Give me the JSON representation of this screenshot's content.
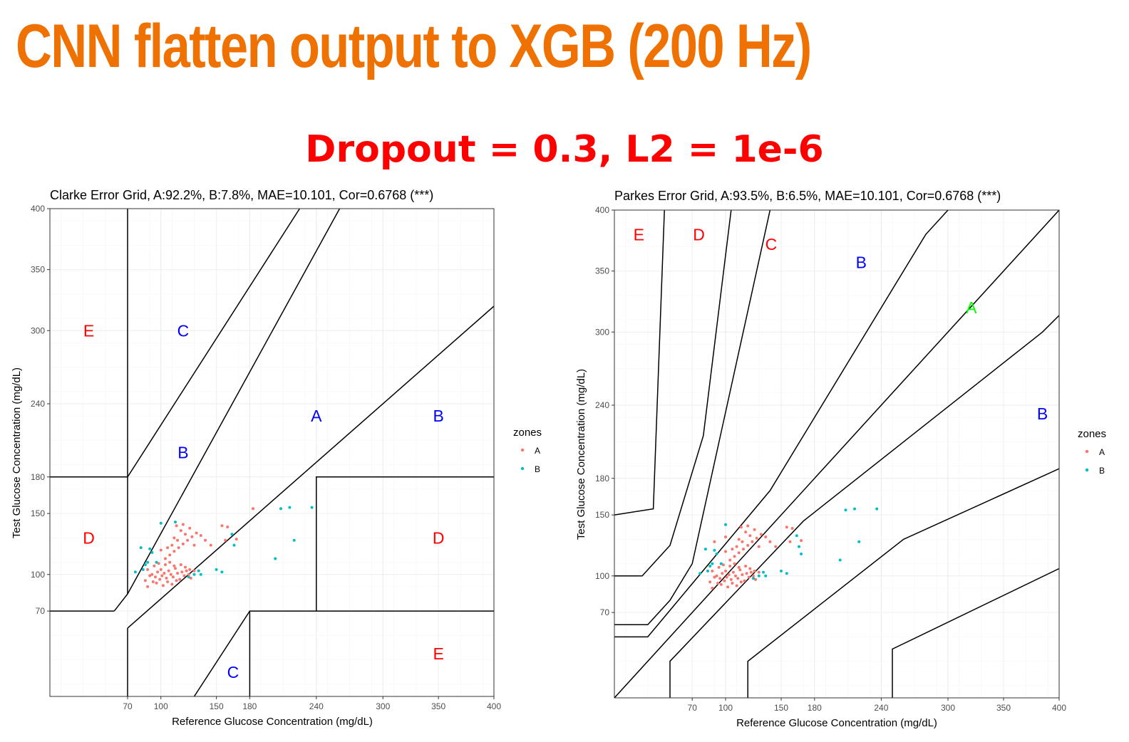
{
  "page": {
    "title": "CNN flatten output to XGB (200 Hz)",
    "subtitle": "Dropout = 0.3, L2 = 1e-6"
  },
  "colors": {
    "title": "#ee7102",
    "subtitle": "#ff0000",
    "zone_A": "#f8766d",
    "zone_B": "#00bfc4",
    "label_red": "#ff0000",
    "label_blue": "#0000ff",
    "label_green": "#00ff00"
  },
  "chart_data": [
    {
      "type": "scatter",
      "title": "Clarke Error Grid, A:92.2%, B:7.8%, MAE=10.101, Cor=0.6768 (***)",
      "xlabel": "Reference Glucose Concentration (mg/dL)",
      "ylabel": "Test Glucose Concentration (mg/dL)",
      "xlim": [
        0,
        400
      ],
      "ylim": [
        0,
        400
      ],
      "xticks": [
        70,
        100,
        150,
        180,
        240,
        300,
        350,
        400
      ],
      "yticks": [
        70,
        100,
        150,
        180,
        240,
        300,
        350,
        400
      ],
      "grid": true,
      "legend": {
        "title": "zones",
        "position": "right",
        "entries": [
          "A",
          "B"
        ]
      },
      "zone_lines": [
        [
          [
            70,
            400
          ],
          [
            70,
            84
          ]
        ],
        [
          [
            0,
            180
          ],
          [
            70,
            180
          ],
          [
            225,
            400
          ]
        ],
        [
          [
            58,
            70
          ],
          [
            70,
            84
          ],
          [
            261,
            400
          ]
        ],
        [
          [
            0,
            70
          ],
          [
            58,
            70
          ]
        ],
        [
          [
            70,
            56
          ],
          [
            70,
            0
          ]
        ],
        [
          [
            70,
            56
          ],
          [
            400,
            320
          ]
        ],
        [
          [
            240,
            70
          ],
          [
            240,
            180
          ],
          [
            400,
            180
          ]
        ],
        [
          [
            180,
            0
          ],
          [
            180,
            70
          ],
          [
            400,
            70
          ]
        ],
        [
          [
            130,
            0
          ],
          [
            180,
            70
          ]
        ]
      ],
      "zone_labels": [
        {
          "text": "E",
          "x": 35,
          "y": 300,
          "color": "red"
        },
        {
          "text": "C",
          "x": 120,
          "y": 300,
          "color": "blue"
        },
        {
          "text": "A",
          "x": 240,
          "y": 230,
          "color": "blue"
        },
        {
          "text": "B",
          "x": 350,
          "y": 230,
          "color": "blue"
        },
        {
          "text": "B",
          "x": 120,
          "y": 200,
          "color": "blue"
        },
        {
          "text": "D",
          "x": 35,
          "y": 130,
          "color": "red"
        },
        {
          "text": "D",
          "x": 350,
          "y": 130,
          "color": "red"
        },
        {
          "text": "E",
          "x": 350,
          "y": 35,
          "color": "red"
        },
        {
          "text": "C",
          "x": 165,
          "y": 20,
          "color": "blue"
        }
      ],
      "series": [
        {
          "name": "A",
          "points": [
            [
              92,
              100
            ],
            [
              95,
              98
            ],
            [
              97,
              102
            ],
            [
              99,
              96
            ],
            [
              100,
              104
            ],
            [
              101,
              99
            ],
            [
              103,
              101
            ],
            [
              105,
              97
            ],
            [
              107,
              103
            ],
            [
              109,
              100
            ],
            [
              111,
              98
            ],
            [
              113,
              105
            ],
            [
              115,
              101
            ],
            [
              117,
              96
            ],
            [
              119,
              102
            ],
            [
              121,
              99
            ],
            [
              123,
              103
            ],
            [
              125,
              100
            ],
            [
              127,
              97
            ],
            [
              86,
              95
            ],
            [
              88,
              104
            ],
            [
              90,
              99
            ],
            [
              94,
              107
            ],
            [
              96,
              93
            ],
            [
              98,
              109
            ],
            [
              102,
              91
            ],
            [
              104,
              108
            ],
            [
              106,
              94
            ],
            [
              108,
              110
            ],
            [
              110,
              92
            ],
            [
              112,
              107
            ],
            [
              114,
              95
            ],
            [
              118,
              108
            ],
            [
              122,
              106
            ],
            [
              126,
              104
            ],
            [
              130,
              103
            ],
            [
              88,
              90
            ],
            [
              93,
              94
            ],
            [
              104,
              113
            ],
            [
              108,
              116
            ],
            [
              112,
              119
            ],
            [
              116,
              122
            ],
            [
              120,
              125
            ],
            [
              124,
              128
            ],
            [
              128,
              131
            ],
            [
              132,
              134
            ],
            [
              110,
              124
            ],
            [
              115,
              128
            ],
            [
              118,
              136
            ],
            [
              122,
              133
            ],
            [
              126,
              138
            ],
            [
              114,
              140
            ],
            [
              120,
              141
            ],
            [
              136,
              132
            ],
            [
              140,
              128
            ],
            [
              145,
              124
            ],
            [
              100,
              120
            ],
            [
              106,
              122
            ],
            [
              112,
              130
            ],
            [
              130,
              124
            ],
            [
              155,
              140
            ],
            [
              160,
              139
            ],
            [
              158,
              128
            ],
            [
              168,
              129
            ],
            [
              183,
              154
            ]
          ]
        },
        {
          "name": "B",
          "points": [
            [
              77,
              102
            ],
            [
              82,
              122
            ],
            [
              84,
              104
            ],
            [
              86,
              108
            ],
            [
              88,
              110
            ],
            [
              90,
              121
            ],
            [
              92,
              118
            ],
            [
              96,
              110
            ],
            [
              100,
              142
            ],
            [
              113,
              143
            ],
            [
              125,
              98
            ],
            [
              130,
              100
            ],
            [
              134,
              103
            ],
            [
              136,
              100
            ],
            [
              150,
              104
            ],
            [
              155,
              102
            ],
            [
              164,
              133
            ],
            [
              166,
              124
            ],
            [
              203,
              113
            ],
            [
              208,
              154
            ],
            [
              216,
              155
            ],
            [
              220,
              128
            ],
            [
              236,
              155
            ]
          ]
        }
      ]
    },
    {
      "type": "scatter",
      "title": "Parkes Error Grid, A:93.5%, B:6.5%, MAE=10.101, Cor=0.6768 (***)",
      "xlabel": "Reference Glucose Concentration (mg/dL)",
      "ylabel": "Test Glucose Concentration (mg/dL)",
      "xlim": [
        0,
        400
      ],
      "ylim": [
        0,
        400
      ],
      "xticks": [
        70,
        100,
        150,
        180,
        240,
        300,
        350,
        400
      ],
      "yticks": [
        70,
        100,
        150,
        180,
        240,
        300,
        350,
        400
      ],
      "grid": true,
      "legend": {
        "title": "zones",
        "position": "right",
        "entries": [
          "A",
          "B"
        ]
      },
      "zone_lines": [
        [
          [
            0,
            150
          ],
          [
            35,
            155
          ],
          [
            45,
            400
          ]
        ],
        [
          [
            0,
            100
          ],
          [
            25,
            100
          ],
          [
            50,
            125
          ],
          [
            80,
            215
          ],
          [
            105,
            400
          ]
        ],
        [
          [
            0,
            60
          ],
          [
            30,
            60
          ],
          [
            50,
            80
          ],
          [
            70,
            110
          ],
          [
            140,
            400
          ]
        ],
        [
          [
            0,
            50
          ],
          [
            30,
            50
          ],
          [
            140,
            170
          ],
          [
            280,
            380
          ],
          [
            400,
            500
          ]
        ],
        [
          [
            0,
            0
          ],
          [
            400,
            400
          ]
        ],
        [
          [
            50,
            0
          ],
          [
            50,
            30
          ],
          [
            170,
            145
          ],
          [
            385,
            300
          ],
          [
            550,
            450
          ]
        ],
        [
          [
            120,
            0
          ],
          [
            120,
            30
          ],
          [
            260,
            130
          ],
          [
            550,
            250
          ]
        ],
        [
          [
            250,
            0
          ],
          [
            250,
            40
          ],
          [
            500,
            150
          ]
        ]
      ],
      "zone_labels": [
        {
          "text": "E",
          "x": 22,
          "y": 380,
          "color": "red"
        },
        {
          "text": "D",
          "x": 76,
          "y": 380,
          "color": "red"
        },
        {
          "text": "C",
          "x": 141,
          "y": 372,
          "color": "red"
        },
        {
          "text": "B",
          "x": 222,
          "y": 357,
          "color": "blue"
        },
        {
          "text": "A",
          "x": 321,
          "y": 320,
          "color": "green"
        },
        {
          "text": "B",
          "x": 385,
          "y": 233,
          "color": "blue"
        }
      ],
      "series": [
        {
          "name": "A",
          "points": [
            [
              92,
              100
            ],
            [
              95,
              98
            ],
            [
              97,
              102
            ],
            [
              99,
              96
            ],
            [
              100,
              104
            ],
            [
              101,
              99
            ],
            [
              103,
              101
            ],
            [
              105,
              97
            ],
            [
              107,
              103
            ],
            [
              109,
              100
            ],
            [
              111,
              98
            ],
            [
              113,
              105
            ],
            [
              115,
              101
            ],
            [
              117,
              96
            ],
            [
              119,
              102
            ],
            [
              121,
              99
            ],
            [
              123,
              103
            ],
            [
              125,
              100
            ],
            [
              127,
              97
            ],
            [
              86,
              95
            ],
            [
              88,
              104
            ],
            [
              90,
              99
            ],
            [
              94,
              107
            ],
            [
              96,
              93
            ],
            [
              98,
              109
            ],
            [
              102,
              91
            ],
            [
              104,
              108
            ],
            [
              106,
              94
            ],
            [
              108,
              110
            ],
            [
              110,
              92
            ],
            [
              112,
              107
            ],
            [
              114,
              95
            ],
            [
              118,
              108
            ],
            [
              122,
              106
            ],
            [
              126,
              104
            ],
            [
              130,
              103
            ],
            [
              88,
              90
            ],
            [
              93,
              94
            ],
            [
              104,
              113
            ],
            [
              108,
              116
            ],
            [
              112,
              119
            ],
            [
              116,
              122
            ],
            [
              120,
              125
            ],
            [
              124,
              128
            ],
            [
              128,
              131
            ],
            [
              132,
              134
            ],
            [
              110,
              124
            ],
            [
              115,
              128
            ],
            [
              118,
              136
            ],
            [
              122,
              133
            ],
            [
              126,
              138
            ],
            [
              114,
              140
            ],
            [
              120,
              141
            ],
            [
              136,
              132
            ],
            [
              140,
              128
            ],
            [
              145,
              124
            ],
            [
              100,
              120
            ],
            [
              106,
              122
            ],
            [
              112,
              130
            ],
            [
              130,
              124
            ],
            [
              155,
              140
            ],
            [
              160,
              139
            ],
            [
              158,
              128
            ],
            [
              168,
              129
            ],
            [
              90,
              128
            ],
            [
              100,
              132
            ]
          ]
        },
        {
          "name": "B",
          "points": [
            [
              77,
              102
            ],
            [
              82,
              122
            ],
            [
              84,
              104
            ],
            [
              86,
              108
            ],
            [
              88,
              110
            ],
            [
              90,
              121
            ],
            [
              92,
              118
            ],
            [
              96,
              110
            ],
            [
              100,
              142
            ],
            [
              125,
              98
            ],
            [
              130,
              100
            ],
            [
              134,
              103
            ],
            [
              136,
              100
            ],
            [
              150,
              104
            ],
            [
              155,
              102
            ],
            [
              164,
              133
            ],
            [
              166,
              124
            ],
            [
              168,
              118
            ],
            [
              203,
              113
            ],
            [
              208,
              154
            ],
            [
              216,
              155
            ],
            [
              220,
              128
            ],
            [
              236,
              155
            ]
          ]
        }
      ]
    }
  ]
}
